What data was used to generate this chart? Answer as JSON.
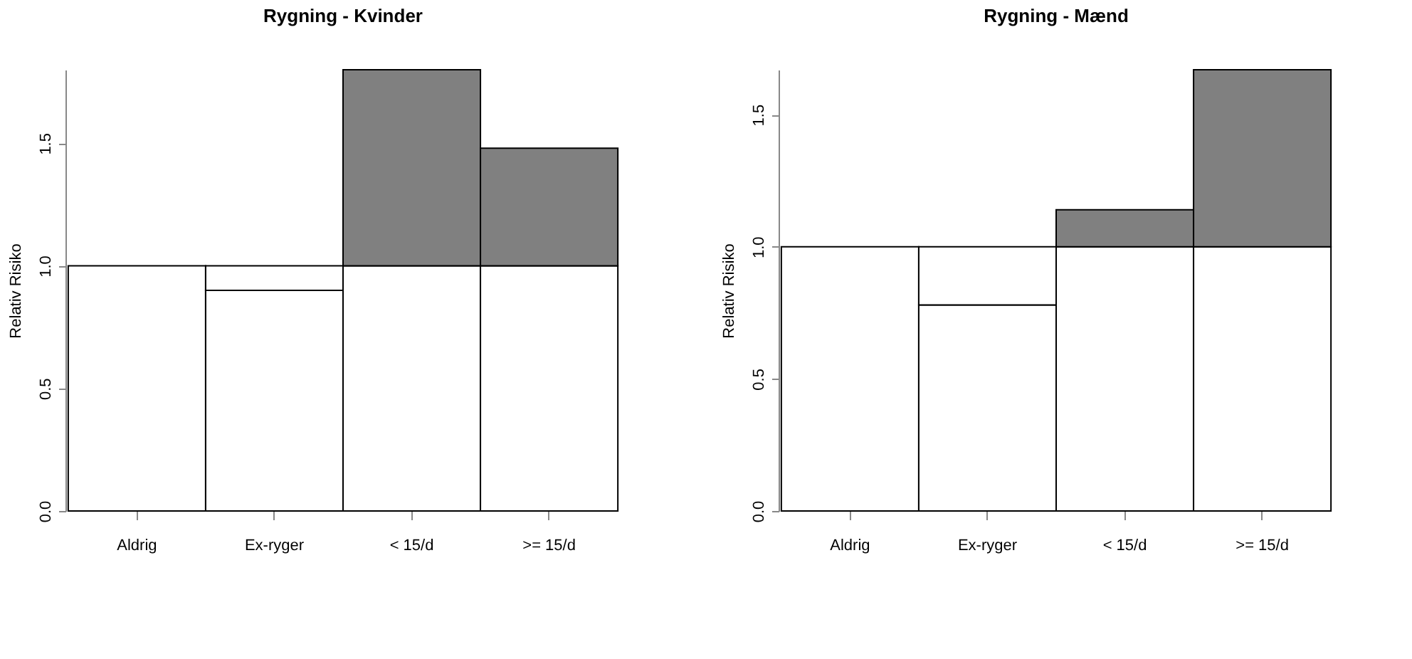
{
  "chart_data": [
    {
      "type": "bar",
      "title": "Rygning - Kvinder",
      "ylabel": "Relativ Risiko",
      "categories": [
        "Aldrig",
        "Ex-ryger",
        "< 15/d",
        ">= 15/d"
      ],
      "stacked": true,
      "ylim": [
        0,
        1.8
      ],
      "yticks": [
        {
          "value": 0,
          "label": "0.0"
        },
        {
          "value": 0.5,
          "label": "0.5"
        },
        {
          "value": 1,
          "label": "1.0"
        },
        {
          "value": 1.5,
          "label": "1.5"
        }
      ],
      "grid": false,
      "legend": false,
      "series": [
        {
          "color": "#ffffff",
          "values": [
            1.0,
            0.9,
            1.0,
            1.0
          ]
        },
        {
          "color": "#ffffff",
          "values": [
            null,
            0.1,
            null,
            null
          ]
        },
        {
          "color": "#808080",
          "values": [
            null,
            null,
            0.8,
            0.48
          ]
        }
      ]
    },
    {
      "type": "bar",
      "title": "Rygning - Mænd",
      "ylabel": "Relativ Risiko",
      "categories": [
        "Aldrig",
        "Ex-ryger",
        "< 15/d",
        ">= 15/d"
      ],
      "stacked": true,
      "ylim": [
        0,
        1.67
      ],
      "yticks": [
        {
          "value": 0,
          "label": "0.0"
        },
        {
          "value": 0.5,
          "label": "0.5"
        },
        {
          "value": 1,
          "label": "1.0"
        },
        {
          "value": 1.5,
          "label": "1.5"
        }
      ],
      "grid": false,
      "legend": false,
      "series": [
        {
          "color": "#ffffff",
          "values": [
            1.0,
            0.78,
            1.0,
            1.0
          ]
        },
        {
          "color": "#ffffff",
          "values": [
            null,
            0.22,
            null,
            null
          ]
        },
        {
          "color": "#808080",
          "values": [
            null,
            null,
            0.14,
            0.67
          ]
        }
      ]
    }
  ]
}
